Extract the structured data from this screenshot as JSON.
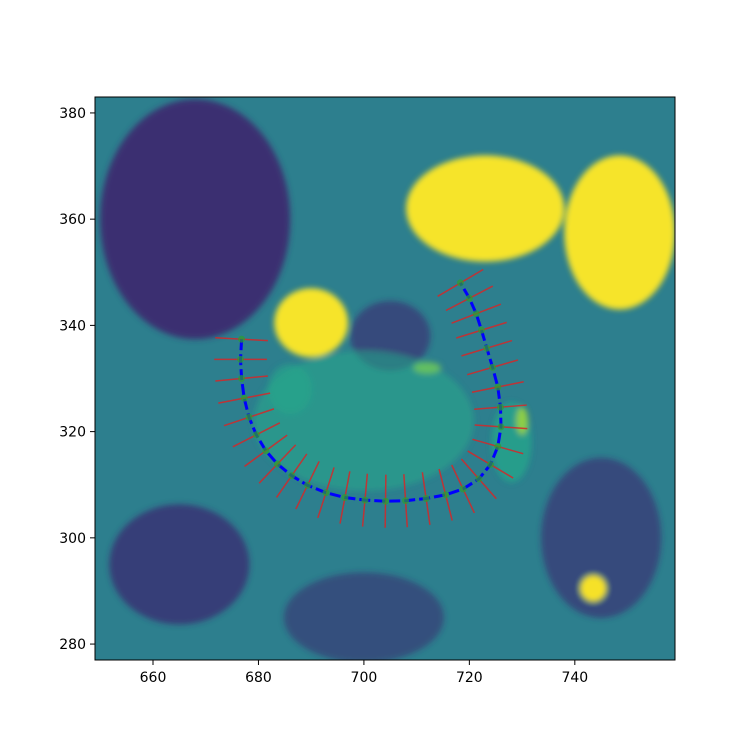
{
  "chart_data": {
    "type": "heatmap",
    "title": "",
    "xlabel": "",
    "ylabel": "",
    "xlim": [
      649,
      759
    ],
    "ylim": [
      277,
      383
    ],
    "x_ticks": [
      660,
      680,
      700,
      720,
      740
    ],
    "y_ticks": [
      280,
      300,
      320,
      340,
      360,
      380
    ],
    "colormap": "viridis",
    "colors": {
      "background_dark": "#3b2a70",
      "mid": "#2d7f8e",
      "teal": "#25a98a",
      "bright": "#fde725",
      "loop_line": "#0000ff",
      "normals": "#d62728",
      "points": "#2ca02c"
    },
    "bright_regions": [
      {
        "label": "upper-center",
        "x": [
          708,
          738
        ],
        "y": [
          352,
          372
        ]
      },
      {
        "label": "upper-right",
        "x": [
          738,
          759
        ],
        "y": [
          343,
          372
        ]
      },
      {
        "label": "center-left",
        "x": [
          683,
          697
        ],
        "y": [
          334,
          347
        ]
      },
      {
        "label": "lower-right-spot",
        "x": [
          741,
          746
        ],
        "y": [
          288,
          293
        ]
      }
    ],
    "loop_points": [
      {
        "x": 676.8,
        "y": 337.4
      },
      {
        "x": 676.6,
        "y": 333.6
      },
      {
        "x": 676.8,
        "y": 330.0
      },
      {
        "x": 677.3,
        "y": 326.3
      },
      {
        "x": 678.2,
        "y": 322.7
      },
      {
        "x": 679.6,
        "y": 319.4
      },
      {
        "x": 681.4,
        "y": 316.4
      },
      {
        "x": 683.6,
        "y": 313.9
      },
      {
        "x": 686.3,
        "y": 311.7
      },
      {
        "x": 689.3,
        "y": 309.9
      },
      {
        "x": 692.8,
        "y": 308.5
      },
      {
        "x": 696.4,
        "y": 307.6
      },
      {
        "x": 700.2,
        "y": 307.1
      },
      {
        "x": 704.1,
        "y": 306.9
      },
      {
        "x": 707.9,
        "y": 307.0
      },
      {
        "x": 711.8,
        "y": 307.4
      },
      {
        "x": 715.5,
        "y": 308.1
      },
      {
        "x": 718.8,
        "y": 309.2
      },
      {
        "x": 721.8,
        "y": 311.1
      },
      {
        "x": 724.0,
        "y": 313.8
      },
      {
        "x": 725.4,
        "y": 317.2
      },
      {
        "x": 726.0,
        "y": 320.9
      },
      {
        "x": 725.9,
        "y": 324.6
      },
      {
        "x": 725.4,
        "y": 328.4
      },
      {
        "x": 724.4,
        "y": 332.1
      },
      {
        "x": 723.3,
        "y": 335.7
      },
      {
        "x": 722.3,
        "y": 339.1
      },
      {
        "x": 721.3,
        "y": 342.2
      },
      {
        "x": 720.0,
        "y": 345.1
      },
      {
        "x": 718.3,
        "y": 348.0
      }
    ],
    "normal_half_length": 5
  }
}
